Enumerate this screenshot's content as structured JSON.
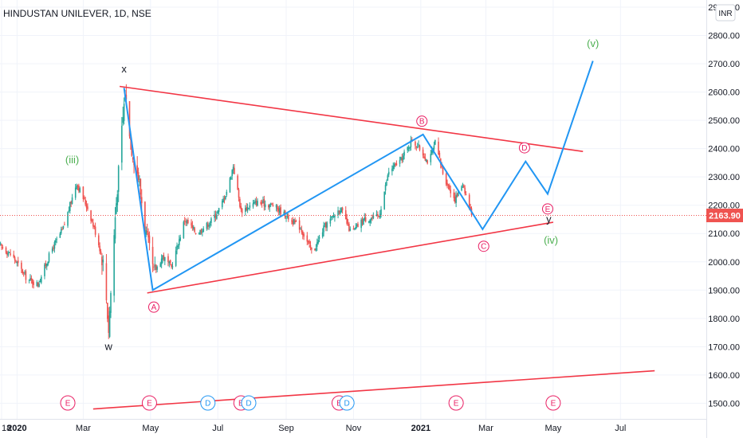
{
  "header": {
    "title": "HINDUSTAN UNILEVER, 1D, NSE"
  },
  "currency": "INR",
  "last_price": "2163.90",
  "colors": {
    "up": "#26a69a",
    "down": "#ef5350",
    "trendline": "#f23645",
    "wave": "#2196f3",
    "green": "#4caf50",
    "pink": "#e91e63",
    "blue_event": "#2196f3"
  },
  "chart_data": {
    "type": "candlestick",
    "ylim": [
      1460,
      2980
    ],
    "y_ticks": [
      1500,
      1600,
      1700,
      1800,
      1900,
      2000,
      2100,
      2200,
      2300,
      2400,
      2500,
      2600,
      2700,
      2800,
      2900
    ],
    "y_tick_labels": [
      "1500.00",
      "1600.00",
      "1700.00",
      "1800.00",
      "1900.00",
      "2000.00",
      "2100.00",
      "2200.00",
      "2300.00",
      "2400.00",
      "2500.00",
      "2600.00",
      "2700.00",
      "2800.00",
      "2900.00"
    ],
    "x_ticks": [
      {
        "label": "18",
        "bold": false
      },
      {
        "label": "2020",
        "bold": true
      },
      {
        "label": "Mar",
        "bold": false
      },
      {
        "label": "May",
        "bold": false
      },
      {
        "label": "Jul",
        "bold": false
      },
      {
        "label": "Sep",
        "bold": false
      },
      {
        "label": "Nov",
        "bold": false
      },
      {
        "label": "2021",
        "bold": true
      },
      {
        "label": "Mar",
        "bold": false
      },
      {
        "label": "May",
        "bold": false
      },
      {
        "label": "Jul",
        "bold": false
      }
    ],
    "price_path": [
      [
        "2019-12-16",
        2060
      ],
      [
        "2019-12-28",
        2020
      ],
      [
        "2020-01-10",
        1940
      ],
      [
        "2020-01-20",
        1920
      ],
      [
        "2020-02-01",
        2040
      ],
      [
        "2020-02-12",
        2120
      ],
      [
        "2020-02-24",
        2280
      ],
      [
        "2020-03-06",
        2180
      ],
      [
        "2020-03-14",
        2080
      ],
      [
        "2020-03-20",
        1980
      ],
      [
        "2020-03-24",
        1760
      ],
      [
        "2020-03-30",
        2160
      ],
      [
        "2020-04-04",
        2420
      ],
      [
        "2020-04-08",
        2600
      ],
      [
        "2020-04-14",
        2400
      ],
      [
        "2020-04-20",
        2300
      ],
      [
        "2020-04-27",
        2100
      ],
      [
        "2020-05-04",
        1960
      ],
      [
        "2020-05-12",
        2020
      ],
      [
        "2020-05-20",
        1980
      ],
      [
        "2020-06-01",
        2150
      ],
      [
        "2020-06-12",
        2100
      ],
      [
        "2020-06-24",
        2140
      ],
      [
        "2020-07-03",
        2190
      ],
      [
        "2020-07-10",
        2260
      ],
      [
        "2020-07-15",
        2340
      ],
      [
        "2020-07-22",
        2180
      ],
      [
        "2020-08-05",
        2210
      ],
      [
        "2020-08-20",
        2200
      ],
      [
        "2020-09-02",
        2160
      ],
      [
        "2020-09-14",
        2120
      ],
      [
        "2020-09-25",
        2030
      ],
      [
        "2020-10-05",
        2120
      ],
      [
        "2020-10-20",
        2190
      ],
      [
        "2020-10-30",
        2100
      ],
      [
        "2020-11-10",
        2150
      ],
      [
        "2020-11-24",
        2160
      ],
      [
        "2020-12-03",
        2320
      ],
      [
        "2020-12-14",
        2360
      ],
      [
        "2020-12-24",
        2430
      ],
      [
        "2020-12-31",
        2400
      ],
      [
        "2021-01-08",
        2350
      ],
      [
        "2021-01-14",
        2420
      ],
      [
        "2021-01-22",
        2300
      ],
      [
        "2021-02-01",
        2220
      ],
      [
        "2021-02-08",
        2280
      ],
      [
        "2021-02-16",
        2163.9
      ]
    ],
    "trendlines": [
      {
        "name": "upper",
        "points": [
          [
            "2020-04-03",
            2620
          ],
          [
            "2021-05-28",
            2390
          ]
        ]
      },
      {
        "name": "lower",
        "points": [
          [
            "2020-04-28",
            1890
          ],
          [
            "2021-05-01",
            2140
          ]
        ]
      },
      {
        "name": "bottom",
        "points": [
          [
            "2020-03-10",
            1480
          ],
          [
            "2021-08-01",
            1615
          ]
        ]
      }
    ],
    "waves": [
      {
        "name": "wave_path",
        "points": [
          [
            "2020-04-07",
            2615
          ],
          [
            "2020-05-03",
            1900
          ],
          [
            "2021-01-03",
            2450
          ],
          [
            "2021-02-26",
            2115
          ],
          [
            "2021-04-06",
            2355
          ],
          [
            "2021-04-26",
            2240
          ],
          [
            "2021-06-06",
            2710
          ]
        ]
      }
    ],
    "labels": [
      {
        "text": "x",
        "date": "2020-04-07",
        "price": 2680,
        "style": "plain"
      },
      {
        "text": "w",
        "date": "2020-03-24",
        "price": 1700,
        "style": "plain"
      },
      {
        "text": "(iii)",
        "date": "2020-02-20",
        "price": 2360,
        "style": "green"
      },
      {
        "text": "A",
        "date": "2020-05-04",
        "price": 1840,
        "style": "pink-circle"
      },
      {
        "text": "B",
        "date": "2021-01-02",
        "price": 2497,
        "style": "pink-circle"
      },
      {
        "text": "C",
        "date": "2021-02-27",
        "price": 2055,
        "style": "pink-circle"
      },
      {
        "text": "D",
        "date": "2021-04-05",
        "price": 2403,
        "style": "pink-circle"
      },
      {
        "text": "E",
        "date": "2021-04-26",
        "price": 2187,
        "style": "pink-circle"
      },
      {
        "text": "y",
        "date": "2021-04-27",
        "price": 2150,
        "style": "plain"
      },
      {
        "text": "(iv)",
        "date": "2021-04-29",
        "price": 2075,
        "style": "green"
      },
      {
        "text": "(v)",
        "date": "2021-06-06",
        "price": 2770,
        "style": "green"
      }
    ],
    "events": [
      {
        "date": "2020-02-16",
        "type": "E"
      },
      {
        "date": "2020-04-30",
        "type": "E"
      },
      {
        "date": "2020-06-22",
        "type": "D"
      },
      {
        "date": "2020-07-22",
        "type": "E"
      },
      {
        "date": "2020-07-29",
        "type": "D"
      },
      {
        "date": "2020-10-19",
        "type": "E"
      },
      {
        "date": "2020-10-26",
        "type": "D"
      },
      {
        "date": "2021-02-02",
        "type": "E"
      },
      {
        "date": "2021-05-01",
        "type": "E"
      }
    ]
  }
}
